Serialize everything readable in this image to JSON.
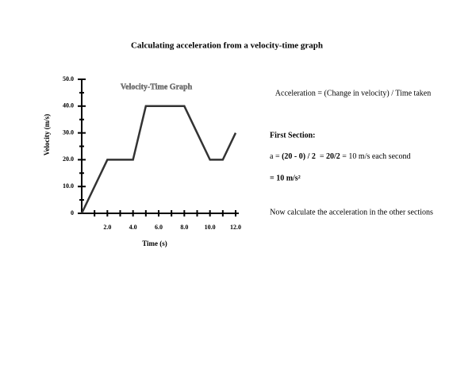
{
  "title": "Calculating acceleration from a velocity-time graph",
  "chart_data": {
    "type": "line",
    "title": "Velocity-Time Graph",
    "x_label": "Time (s)",
    "y_label": "Velocity (m/s)",
    "x": [
      0,
      2,
      4,
      5,
      8,
      10,
      11,
      12
    ],
    "series": [
      {
        "color": "#333333",
        "values": [
          0,
          20,
          20,
          40,
          40,
          20,
          20,
          30
        ]
      }
    ],
    "xlim": [
      0,
      12
    ],
    "xticks": [
      {
        "value": 2,
        "label": "2.0"
      },
      {
        "value": 4,
        "label": "4.0"
      },
      {
        "value": 6,
        "label": "6.0"
      },
      {
        "value": 8,
        "label": "8.0"
      },
      {
        "value": 10,
        "label": "10.0"
      },
      {
        "value": 12,
        "label": "12.0"
      }
    ],
    "xminorticks": [
      1,
      3,
      5,
      7,
      9,
      11
    ],
    "ylim": [
      0,
      50
    ],
    "yticks": [
      0,
      {
        "value": 10,
        "label": "10.0"
      },
      {
        "value": 20,
        "label": "20.0"
      },
      {
        "value": 30,
        "label": "30.0"
      },
      {
        "value": 40,
        "label": "40.0"
      },
      {
        "value": 50,
        "label": "50.0"
      }
    ],
    "yminorticks": [
      5,
      15,
      25,
      35,
      45
    ]
  },
  "text": {
    "definition": "Acceleration = (Change in velocity) / Time taken",
    "section_heading": "First Section:",
    "formula": [
      "a = ",
      "(20 - 0) / 2",
      "  = ",
      "20/2",
      " = 10 m/s each second"
    ],
    "result": "=  10 m/s²",
    "instruction": "Now calculate the acceleration in the other sections"
  }
}
